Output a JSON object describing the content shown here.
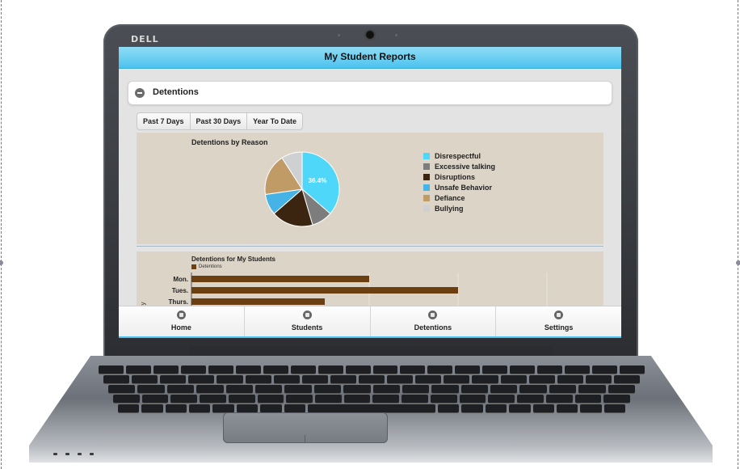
{
  "device": {
    "brand": "DELL"
  },
  "app": {
    "title": "My Student Reports"
  },
  "section": {
    "title": "Detentions",
    "expanded": true
  },
  "range_tabs": [
    {
      "label": "Past 7 Days"
    },
    {
      "label": "Past 30 Days"
    },
    {
      "label": "Year To Date"
    }
  ],
  "pie_chart": {
    "title": "Detentions by Reason",
    "highlight_label": "36.4%",
    "legend": [
      {
        "label": "Disrespectful",
        "color": "#4fd7f9"
      },
      {
        "label": "Excessive talking",
        "color": "#7d7d7d"
      },
      {
        "label": "Disruptions",
        "color": "#3b2510"
      },
      {
        "label": "Unsafe Behavior",
        "color": "#45b3e6"
      },
      {
        "label": "Defiance",
        "color": "#c19b66"
      },
      {
        "label": "Bullying",
        "color": "#cfd0d2"
      }
    ]
  },
  "bar_chart": {
    "title": "Detentions for My Students",
    "legend_label": "Detentions",
    "legend_color": "#6b3f12",
    "y_axis_partial_label": "y"
  },
  "nav": [
    {
      "label": "Home",
      "icon": "home-icon"
    },
    {
      "label": "Students",
      "icon": "grid-icon"
    },
    {
      "label": "Detentions",
      "icon": "warning-icon"
    },
    {
      "label": "Settings",
      "icon": "gear-icon"
    }
  ],
  "chart_data": [
    {
      "type": "pie",
      "title": "Detentions by Reason",
      "labels": [
        "Disrespectful",
        "Excessive talking",
        "Disruptions",
        "Unsafe Behavior",
        "Defiance",
        "Bullying"
      ],
      "values": [
        36.4,
        9.1,
        18.2,
        9.1,
        18.2,
        9.1
      ],
      "colors": [
        "#4fd7f9",
        "#7d7d7d",
        "#3b2510",
        "#45b3e6",
        "#c19b66",
        "#cfd0d2"
      ],
      "data_labels": [
        "36.4%",
        "",
        "",
        "",
        "",
        ""
      ],
      "legend_position": "right"
    },
    {
      "type": "bar",
      "orientation": "horizontal",
      "title": "Detentions for My Students",
      "categories": [
        "Mon.",
        "Tues.",
        "Thurs."
      ],
      "series": [
        {
          "name": "Detentions",
          "values": [
            4,
            6,
            3
          ],
          "color": "#6b3f12"
        }
      ],
      "xlim": [
        0,
        8
      ],
      "legend_position": "top-left",
      "grid": true
    }
  ]
}
